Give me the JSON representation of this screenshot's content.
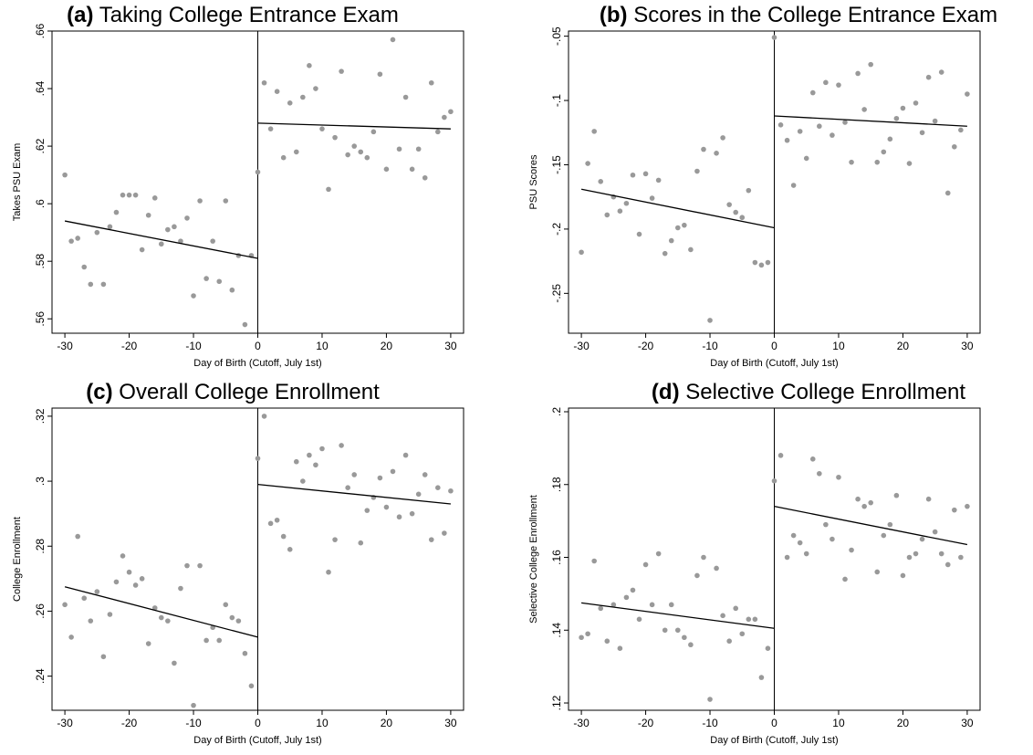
{
  "chart_data": [
    {
      "type": "scatter",
      "panel_label": "(a)",
      "title": "Taking College Entrance Exam",
      "xlabel": "Day of Birth (Cutoff, July 1st)",
      "ylabel": "Takes PSU Exam",
      "xlim": [
        -32,
        32
      ],
      "ylim": [
        0.555,
        0.66
      ],
      "xticks": [
        -30,
        -20,
        -10,
        0,
        10,
        20,
        30
      ],
      "xtick_labels": [
        "-30",
        "-20",
        "-10",
        "0",
        "10",
        "20",
        "30"
      ],
      "yticks": [
        0.56,
        0.58,
        0.6,
        0.62,
        0.64,
        0.66
      ],
      "ytick_labels": [
        ".56",
        ".58",
        ".6",
        ".62",
        ".64",
        ".66"
      ],
      "cutoff_line": 0,
      "fit_left": [
        [
          -30,
          0.594
        ],
        [
          0,
          0.581
        ]
      ],
      "fit_right": [
        [
          0,
          0.628
        ],
        [
          30,
          0.626
        ]
      ],
      "points": [
        [
          -30,
          0.61
        ],
        [
          -29,
          0.587
        ],
        [
          -28,
          0.588
        ],
        [
          -27,
          0.578
        ],
        [
          -26,
          0.572
        ],
        [
          -25,
          0.59
        ],
        [
          -24,
          0.572
        ],
        [
          -23,
          0.592
        ],
        [
          -22,
          0.597
        ],
        [
          -21,
          0.603
        ],
        [
          -20,
          0.603
        ],
        [
          -19,
          0.603
        ],
        [
          -18,
          0.584
        ],
        [
          -17,
          0.596
        ],
        [
          -16,
          0.602
        ],
        [
          -15,
          0.586
        ],
        [
          -14,
          0.591
        ],
        [
          -13,
          0.592
        ],
        [
          -12,
          0.587
        ],
        [
          -11,
          0.595
        ],
        [
          -10,
          0.568
        ],
        [
          -9,
          0.601
        ],
        [
          -8,
          0.574
        ],
        [
          -7,
          0.587
        ],
        [
          -6,
          0.573
        ],
        [
          -5,
          0.601
        ],
        [
          -4,
          0.57
        ],
        [
          -3,
          0.582
        ],
        [
          -2,
          0.558
        ],
        [
          -1,
          0.582
        ],
        [
          0,
          0.611
        ],
        [
          1,
          0.642
        ],
        [
          2,
          0.626
        ],
        [
          3,
          0.639
        ],
        [
          4,
          0.616
        ],
        [
          5,
          0.635
        ],
        [
          6,
          0.618
        ],
        [
          7,
          0.637
        ],
        [
          8,
          0.648
        ],
        [
          9,
          0.64
        ],
        [
          10,
          0.626
        ],
        [
          11,
          0.605
        ],
        [
          12,
          0.623
        ],
        [
          13,
          0.646
        ],
        [
          14,
          0.617
        ],
        [
          15,
          0.62
        ],
        [
          16,
          0.618
        ],
        [
          17,
          0.616
        ],
        [
          18,
          0.625
        ],
        [
          19,
          0.645
        ],
        [
          20,
          0.612
        ],
        [
          21,
          0.657
        ],
        [
          22,
          0.619
        ],
        [
          23,
          0.637
        ],
        [
          24,
          0.612
        ],
        [
          25,
          0.619
        ],
        [
          26,
          0.609
        ],
        [
          27,
          0.642
        ],
        [
          28,
          0.625
        ],
        [
          29,
          0.63
        ],
        [
          30,
          0.632
        ]
      ]
    },
    {
      "type": "scatter",
      "panel_label": "(b)",
      "title": "Scores in the College Entrance Exam",
      "xlabel": "Day of Birth (Cutoff, July 1st)",
      "ylabel": "PSU Scores",
      "xlim": [
        -32,
        32
      ],
      "ylim": [
        -0.281,
        -0.046
      ],
      "xticks": [
        -30,
        -20,
        -10,
        0,
        10,
        20,
        30
      ],
      "xtick_labels": [
        "-30",
        "-20",
        "-10",
        "0",
        "10",
        "20",
        "30"
      ],
      "yticks": [
        -0.25,
        -0.2,
        -0.15,
        -0.1,
        -0.05
      ],
      "ytick_labels": [
        "-.25",
        "-.2",
        "-.15",
        "-.1",
        "-.05"
      ],
      "cutoff_line": 0,
      "fit_left": [
        [
          -30,
          -0.169
        ],
        [
          0,
          -0.199
        ]
      ],
      "fit_right": [
        [
          0,
          -0.112
        ],
        [
          30,
          -0.12
        ]
      ],
      "points": [
        [
          -30,
          -0.218
        ],
        [
          -29,
          -0.149
        ],
        [
          -28,
          -0.124
        ],
        [
          -27,
          -0.163
        ],
        [
          -26,
          -0.189
        ],
        [
          -25,
          -0.175
        ],
        [
          -24,
          -0.186
        ],
        [
          -23,
          -0.18
        ],
        [
          -22,
          -0.158
        ],
        [
          -21,
          -0.204
        ],
        [
          -20,
          -0.157
        ],
        [
          -19,
          -0.176
        ],
        [
          -18,
          -0.162
        ],
        [
          -17,
          -0.219
        ],
        [
          -16,
          -0.209
        ],
        [
          -15,
          -0.199
        ],
        [
          -14,
          -0.197
        ],
        [
          -13,
          -0.216
        ],
        [
          -12,
          -0.155
        ],
        [
          -11,
          -0.138
        ],
        [
          -10,
          -0.271
        ],
        [
          -9,
          -0.141
        ],
        [
          -8,
          -0.129
        ],
        [
          -7,
          -0.181
        ],
        [
          -6,
          -0.187
        ],
        [
          -5,
          -0.191
        ],
        [
          -4,
          -0.17
        ],
        [
          -3,
          -0.226
        ],
        [
          -2,
          -0.228
        ],
        [
          -1,
          -0.226
        ],
        [
          0,
          -0.051
        ],
        [
          1,
          -0.119
        ],
        [
          2,
          -0.131
        ],
        [
          3,
          -0.166
        ],
        [
          4,
          -0.124
        ],
        [
          5,
          -0.145
        ],
        [
          6,
          -0.094
        ],
        [
          7,
          -0.12
        ],
        [
          8,
          -0.086
        ],
        [
          9,
          -0.127
        ],
        [
          10,
          -0.088
        ],
        [
          11,
          -0.117
        ],
        [
          12,
          -0.148
        ],
        [
          13,
          -0.079
        ],
        [
          14,
          -0.107
        ],
        [
          15,
          -0.072
        ],
        [
          16,
          -0.148
        ],
        [
          17,
          -0.14
        ],
        [
          18,
          -0.13
        ],
        [
          19,
          -0.114
        ],
        [
          20,
          -0.106
        ],
        [
          21,
          -0.149
        ],
        [
          22,
          -0.102
        ],
        [
          23,
          -0.125
        ],
        [
          24,
          -0.082
        ],
        [
          25,
          -0.116
        ],
        [
          26,
          -0.078
        ],
        [
          27,
          -0.172
        ],
        [
          28,
          -0.136
        ],
        [
          29,
          -0.123
        ],
        [
          30,
          -0.095
        ]
      ]
    },
    {
      "type": "scatter",
      "panel_label": "(c)",
      "title": "Overall College Enrollment",
      "xlabel": "Day of Birth (Cutoff, July 1st)",
      "ylabel": "College Enrollment",
      "xlim": [
        -32,
        32
      ],
      "ylim": [
        0.2295,
        0.3225
      ],
      "xticks": [
        -30,
        -20,
        -10,
        0,
        10,
        20,
        30
      ],
      "xtick_labels": [
        "-30",
        "-20",
        "-10",
        "0",
        "10",
        "20",
        "30"
      ],
      "yticks": [
        0.24,
        0.26,
        0.28,
        0.3,
        0.32
      ],
      "ytick_labels": [
        ".24",
        ".26",
        ".28",
        ".3",
        ".32"
      ],
      "cutoff_line": 0,
      "fit_left": [
        [
          -30,
          0.2675
        ],
        [
          0,
          0.252
        ]
      ],
      "fit_right": [
        [
          0,
          0.299
        ],
        [
          30,
          0.293
        ]
      ],
      "points": [
        [
          -30,
          0.262
        ],
        [
          -29,
          0.252
        ],
        [
          -28,
          0.283
        ],
        [
          -27,
          0.264
        ],
        [
          -26,
          0.257
        ],
        [
          -25,
          0.266
        ],
        [
          -24,
          0.246
        ],
        [
          -23,
          0.259
        ],
        [
          -22,
          0.269
        ],
        [
          -21,
          0.277
        ],
        [
          -20,
          0.272
        ],
        [
          -19,
          0.268
        ],
        [
          -18,
          0.27
        ],
        [
          -17,
          0.25
        ],
        [
          -16,
          0.261
        ],
        [
          -15,
          0.258
        ],
        [
          -14,
          0.257
        ],
        [
          -13,
          0.244
        ],
        [
          -12,
          0.267
        ],
        [
          -11,
          0.274
        ],
        [
          -10,
          0.231
        ],
        [
          -9,
          0.274
        ],
        [
          -8,
          0.251
        ],
        [
          -7,
          0.255
        ],
        [
          -6,
          0.251
        ],
        [
          -5,
          0.262
        ],
        [
          -4,
          0.258
        ],
        [
          -3,
          0.257
        ],
        [
          -2,
          0.247
        ],
        [
          -1,
          0.237
        ],
        [
          0,
          0.307
        ],
        [
          1,
          0.32
        ],
        [
          2,
          0.287
        ],
        [
          3,
          0.288
        ],
        [
          4,
          0.283
        ],
        [
          5,
          0.279
        ],
        [
          6,
          0.306
        ],
        [
          7,
          0.3
        ],
        [
          8,
          0.308
        ],
        [
          9,
          0.305
        ],
        [
          10,
          0.31
        ],
        [
          11,
          0.272
        ],
        [
          12,
          0.282
        ],
        [
          13,
          0.311
        ],
        [
          14,
          0.298
        ],
        [
          15,
          0.302
        ],
        [
          16,
          0.281
        ],
        [
          17,
          0.291
        ],
        [
          18,
          0.295
        ],
        [
          19,
          0.301
        ],
        [
          20,
          0.292
        ],
        [
          21,
          0.303
        ],
        [
          22,
          0.289
        ],
        [
          23,
          0.308
        ],
        [
          24,
          0.29
        ],
        [
          25,
          0.296
        ],
        [
          26,
          0.302
        ],
        [
          27,
          0.282
        ],
        [
          28,
          0.298
        ],
        [
          29,
          0.284
        ],
        [
          30,
          0.297
        ]
      ]
    },
    {
      "type": "scatter",
      "panel_label": "(d)",
      "title": "Selective College Enrollment",
      "xlabel": "Day of Birth (Cutoff, July 1st)",
      "ylabel": "Selective College Enrollment",
      "xlim": [
        -32,
        32
      ],
      "ylim": [
        0.118,
        0.201
      ],
      "xticks": [
        -30,
        -20,
        -10,
        0,
        10,
        20,
        30
      ],
      "xtick_labels": [
        "-30",
        "-20",
        "-10",
        "0",
        "10",
        "20",
        "30"
      ],
      "yticks": [
        0.12,
        0.14,
        0.16,
        0.18,
        0.2
      ],
      "ytick_labels": [
        ".12",
        ".14",
        ".16",
        ".18",
        ".2"
      ],
      "cutoff_line": 0,
      "fit_left": [
        [
          -30,
          0.1475
        ],
        [
          0,
          0.1405
        ]
      ],
      "fit_right": [
        [
          0,
          0.174
        ],
        [
          30,
          0.1635
        ]
      ],
      "points": [
        [
          -30,
          0.138
        ],
        [
          -29,
          0.139
        ],
        [
          -28,
          0.159
        ],
        [
          -27,
          0.146
        ],
        [
          -26,
          0.137
        ],
        [
          -25,
          0.147
        ],
        [
          -24,
          0.135
        ],
        [
          -23,
          0.149
        ],
        [
          -22,
          0.151
        ],
        [
          -21,
          0.143
        ],
        [
          -20,
          0.158
        ],
        [
          -19,
          0.147
        ],
        [
          -18,
          0.161
        ],
        [
          -17,
          0.14
        ],
        [
          -16,
          0.147
        ],
        [
          -15,
          0.14
        ],
        [
          -14,
          0.138
        ],
        [
          -13,
          0.136
        ],
        [
          -12,
          0.155
        ],
        [
          -11,
          0.16
        ],
        [
          -10,
          0.121
        ],
        [
          -9,
          0.157
        ],
        [
          -8,
          0.144
        ],
        [
          -7,
          0.137
        ],
        [
          -6,
          0.146
        ],
        [
          -5,
          0.139
        ],
        [
          -4,
          0.143
        ],
        [
          -3,
          0.143
        ],
        [
          -2,
          0.127
        ],
        [
          -1,
          0.135
        ],
        [
          0,
          0.181
        ],
        [
          1,
          0.188
        ],
        [
          2,
          0.16
        ],
        [
          3,
          0.166
        ],
        [
          4,
          0.164
        ],
        [
          5,
          0.161
        ],
        [
          6,
          0.187
        ],
        [
          7,
          0.183
        ],
        [
          8,
          0.169
        ],
        [
          9,
          0.165
        ],
        [
          10,
          0.182
        ],
        [
          11,
          0.154
        ],
        [
          12,
          0.162
        ],
        [
          13,
          0.176
        ],
        [
          14,
          0.174
        ],
        [
          15,
          0.175
        ],
        [
          16,
          0.156
        ],
        [
          17,
          0.166
        ],
        [
          18,
          0.169
        ],
        [
          19,
          0.177
        ],
        [
          20,
          0.155
        ],
        [
          21,
          0.16
        ],
        [
          22,
          0.161
        ],
        [
          23,
          0.165
        ],
        [
          24,
          0.176
        ],
        [
          25,
          0.167
        ],
        [
          26,
          0.161
        ],
        [
          27,
          0.158
        ],
        [
          28,
          0.173
        ],
        [
          29,
          0.16
        ],
        [
          30,
          0.174
        ]
      ]
    }
  ],
  "colors": {
    "marker": "#999999",
    "fit_line": "#000000",
    "axis": "#000000"
  }
}
